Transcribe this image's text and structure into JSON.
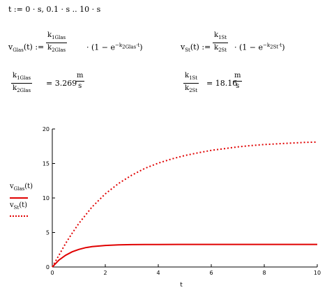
{
  "range_def": "t := 0 · s, 0.1 · s .. 10 · s",
  "formula_glas": {
    "lhs": "v",
    "lhs_sub": "Glas",
    "lhs_arg": "(t) :=",
    "num": "k",
    "num_sub": "1Glas",
    "den": "k",
    "den_sub": "2Glas",
    "paren_open": "· (1 − e",
    "exp_minus": "−",
    "exp_k": "k",
    "exp_sub": "2Glas",
    "exp_t": "·t",
    "paren_close": ")"
  },
  "formula_st": {
    "lhs": "v",
    "lhs_sub": "St",
    "lhs_arg": "(t) :=",
    "num": "k",
    "num_sub": "1St",
    "den": "k",
    "den_sub": "2St",
    "paren_open": "· (1 − e",
    "exp_minus": "−",
    "exp_k": "k",
    "exp_sub": "2St",
    "exp_t": "·t",
    "paren_close": ")"
  },
  "result_glas": {
    "num": "k",
    "num_sub": "1Glas",
    "den": "k",
    "den_sub": "2Glas",
    "equals": "= 3.269",
    "unit_num": "m",
    "unit_den": "s"
  },
  "result_st": {
    "num": "k",
    "num_sub": "1St",
    "den": "k",
    "den_sub": "2St",
    "equals": "= 18.16",
    "unit_num": "m",
    "unit_den": "s"
  },
  "legend": [
    {
      "v": "v",
      "sub": "Glas",
      "arg": "(t)",
      "style": "solid"
    },
    {
      "v": "v",
      "sub": "St",
      "arg": "(t)",
      "style": "dotted"
    }
  ],
  "chart_data": {
    "type": "line",
    "xlabel": "t",
    "xlim": [
      0,
      10
    ],
    "ylim": [
      0,
      20
    ],
    "xticks": [
      0,
      2,
      4,
      6,
      8,
      10
    ],
    "yticks": [
      0,
      5,
      10,
      15,
      20
    ],
    "color": "#e00000",
    "series": [
      {
        "name": "vGlas(t)",
        "style": "solid",
        "x": [
          0,
          0.25,
          0.5,
          0.75,
          1,
          1.25,
          1.5,
          2,
          2.5,
          3,
          3.5,
          4,
          5,
          6,
          7,
          8,
          9,
          10
        ],
        "y": [
          0,
          1.0,
          1.7,
          2.2,
          2.55,
          2.8,
          2.95,
          3.12,
          3.2,
          3.24,
          3.26,
          3.265,
          3.268,
          3.269,
          3.269,
          3.269,
          3.269,
          3.269
        ]
      },
      {
        "name": "vSt(t)",
        "style": "dotted",
        "x": [
          0,
          0.25,
          0.5,
          0.75,
          1,
          1.5,
          2,
          2.5,
          3,
          3.5,
          4,
          4.5,
          5,
          5.5,
          6,
          6.5,
          7,
          7.5,
          8,
          8.5,
          9,
          9.5,
          10
        ],
        "y": [
          0,
          1.7,
          3.4,
          4.9,
          6.3,
          8.7,
          10.6,
          12.1,
          13.3,
          14.3,
          15.05,
          15.65,
          16.15,
          16.55,
          16.9,
          17.15,
          17.4,
          17.6,
          17.75,
          17.85,
          17.95,
          18.05,
          18.1
        ]
      }
    ]
  }
}
